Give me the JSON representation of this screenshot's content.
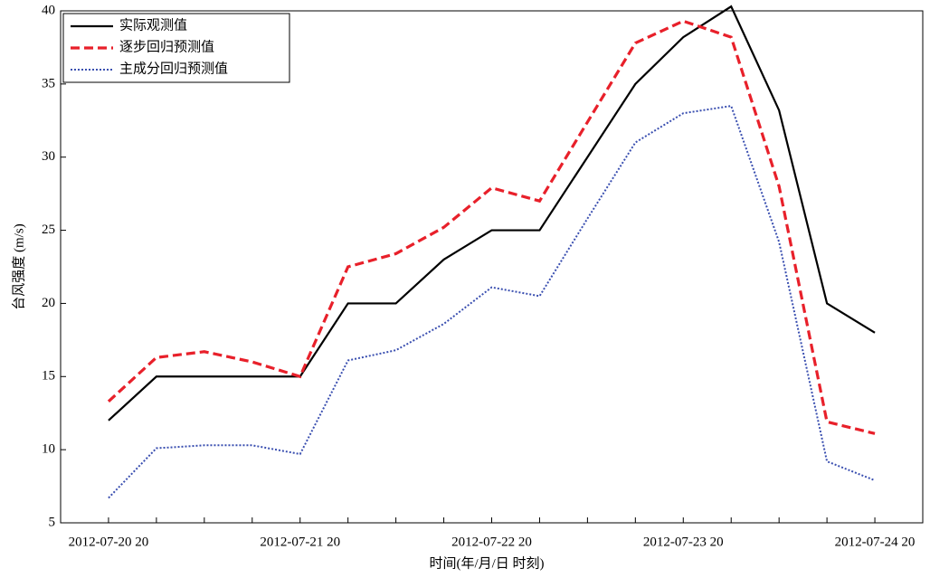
{
  "chart_data": {
    "type": "line",
    "x_label": "时间(年/月/日 时刻)",
    "y_label": "台风强度 (m/s)",
    "categories": [
      "2012-07-20 20",
      null,
      null,
      null,
      "2012-07-21 20",
      null,
      null,
      null,
      "2012-07-22 20",
      null,
      null,
      null,
      "2012-07-23 20",
      null,
      null,
      null,
      "2012-07-24 20"
    ],
    "series": [
      {
        "name": "实际观测值",
        "color": "#000000",
        "dash": "solid",
        "values": [
          12,
          15,
          15,
          15,
          15,
          20,
          20,
          23,
          25,
          25,
          30,
          35,
          38.2,
          40.3,
          33.2,
          20,
          18
        ]
      },
      {
        "name": "逐步回归预测值",
        "color": "#e8202a",
        "dash": "dashed",
        "values": [
          13.3,
          16.3,
          16.7,
          16,
          15,
          22.5,
          23.4,
          25.2,
          27.9,
          27,
          32.4,
          37.8,
          39.3,
          38.2,
          28,
          11.9,
          11.1
        ]
      },
      {
        "name": "主成分回归预测值",
        "color": "#3a4fb0",
        "dash": "dotted",
        "values": [
          6.7,
          10.1,
          10.3,
          10.3,
          9.7,
          16.1,
          16.8,
          18.6,
          21.1,
          20.5,
          25.8,
          31,
          33,
          33.5,
          24.2,
          9.2,
          7.9
        ]
      }
    ],
    "ylim": [
      5,
      40
    ],
    "yticks": [
      5,
      10,
      15,
      20,
      25,
      30,
      35,
      40
    ],
    "legend": "upper-left"
  }
}
